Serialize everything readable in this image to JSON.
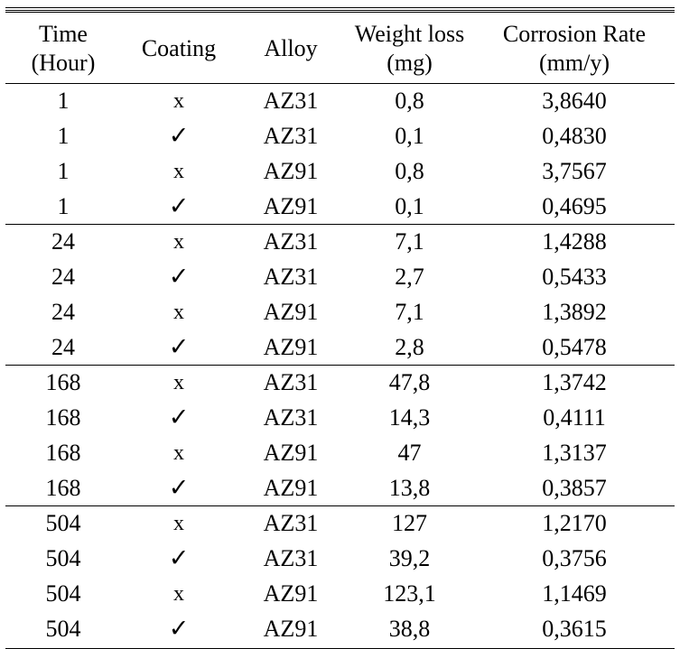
{
  "headers": {
    "time_line1": "Time",
    "time_line2": "(Hour)",
    "coating": "Coating",
    "alloy": "Alloy",
    "weight_line1": "Weight loss",
    "weight_line2": "(mg)",
    "rate_line1": "Corrosion Rate",
    "rate_line2": "(mm/y)"
  },
  "symbols": {
    "uncoated": "x",
    "coated": "✓"
  },
  "groups": [
    {
      "rows": [
        {
          "time": "1",
          "coating": "x",
          "alloy": "AZ31",
          "weight_loss": "0,8",
          "corrosion_rate": "3,8640"
        },
        {
          "time": "1",
          "coating": "✓",
          "alloy": "AZ31",
          "weight_loss": "0,1",
          "corrosion_rate": "0,4830"
        },
        {
          "time": "1",
          "coating": "x",
          "alloy": "AZ91",
          "weight_loss": "0,8",
          "corrosion_rate": "3,7567"
        },
        {
          "time": "1",
          "coating": "✓",
          "alloy": "AZ91",
          "weight_loss": "0,1",
          "corrosion_rate": "0,4695"
        }
      ]
    },
    {
      "rows": [
        {
          "time": "24",
          "coating": "x",
          "alloy": "AZ31",
          "weight_loss": "7,1",
          "corrosion_rate": "1,4288"
        },
        {
          "time": "24",
          "coating": "✓",
          "alloy": "AZ31",
          "weight_loss": "2,7",
          "corrosion_rate": "0,5433"
        },
        {
          "time": "24",
          "coating": "x",
          "alloy": "AZ91",
          "weight_loss": "7,1",
          "corrosion_rate": "1,3892"
        },
        {
          "time": "24",
          "coating": "✓",
          "alloy": "AZ91",
          "weight_loss": "2,8",
          "corrosion_rate": "0,5478"
        }
      ]
    },
    {
      "rows": [
        {
          "time": "168",
          "coating": "x",
          "alloy": "AZ31",
          "weight_loss": "47,8",
          "corrosion_rate": "1,3742"
        },
        {
          "time": "168",
          "coating": "✓",
          "alloy": "AZ31",
          "weight_loss": "14,3",
          "corrosion_rate": "0,4111"
        },
        {
          "time": "168",
          "coating": "x",
          "alloy": "AZ91",
          "weight_loss": "47",
          "corrosion_rate": "1,3137"
        },
        {
          "time": "168",
          "coating": "✓",
          "alloy": "AZ91",
          "weight_loss": "13,8",
          "corrosion_rate": "0,3857"
        }
      ]
    },
    {
      "rows": [
        {
          "time": "504",
          "coating": "x",
          "alloy": "AZ31",
          "weight_loss": "127",
          "corrosion_rate": "1,2170"
        },
        {
          "time": "504",
          "coating": "✓",
          "alloy": "AZ31",
          "weight_loss": "39,2",
          "corrosion_rate": "0,3756"
        },
        {
          "time": "504",
          "coating": "x",
          "alloy": "AZ91",
          "weight_loss": "123,1",
          "corrosion_rate": "1,1469"
        },
        {
          "time": "504",
          "coating": "✓",
          "alloy": "AZ91",
          "weight_loss": "38,8",
          "corrosion_rate": "0,3615"
        }
      ]
    }
  ]
}
